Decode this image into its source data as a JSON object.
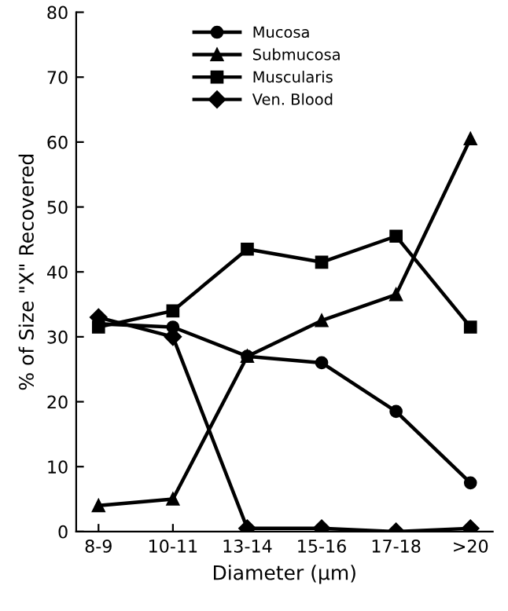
{
  "chart_data": {
    "type": "line",
    "xlabel": "Diameter (μm)",
    "ylabel": "% of Size \"X\" Recovered",
    "categories": [
      "8-9",
      "10-11",
      "13-14",
      "15-16",
      "17-18",
      ">20"
    ],
    "series": [
      {
        "name": "Mucosa",
        "color": "#000000",
        "marker": "circle",
        "values": [
          32,
          31.5,
          27,
          26,
          18.5,
          7.5
        ]
      },
      {
        "name": "Submucosa",
        "color": "#000000",
        "marker": "triangle",
        "values": [
          4,
          5,
          27,
          32.5,
          36.5,
          60.5
        ]
      },
      {
        "name": "Muscularis",
        "color": "#000000",
        "marker": "square",
        "values": [
          31.5,
          34,
          43.5,
          41.5,
          45.5,
          31.5
        ]
      },
      {
        "name": "Ven. Blood",
        "color": "#000000",
        "marker": "diamond",
        "values": [
          33,
          30,
          0.5,
          0.5,
          0,
          0.5
        ]
      }
    ],
    "ylim": [
      0,
      80
    ],
    "yticks": [
      0,
      10,
      20,
      30,
      40,
      50,
      60,
      70,
      80
    ],
    "grid": false,
    "legend": "top left",
    "line_style": "solid"
  }
}
